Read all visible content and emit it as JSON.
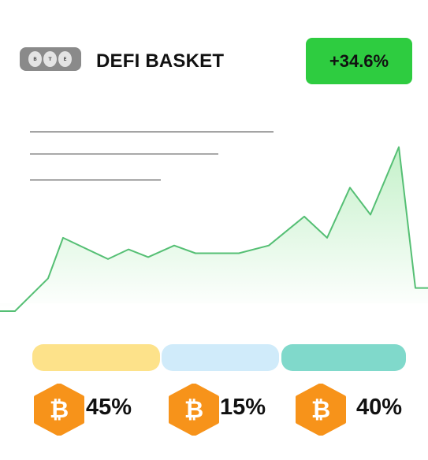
{
  "header": {
    "token_letters": [
      "B",
      "T",
      "E"
    ],
    "title": "DEFI BASKET",
    "change": "+34.6%"
  },
  "chart_data": {
    "type": "area",
    "series": [
      {
        "values": [
          0,
          0,
          17,
          38,
          27,
          32,
          28,
          34,
          30,
          30,
          34,
          49,
          38,
          64,
          50,
          85,
          12,
          12
        ]
      }
    ],
    "ylim": [
      0,
      100
    ],
    "grid": false,
    "line_color": "#55bf74",
    "fill_color": "#2ecc40"
  },
  "allocation": [
    {
      "asset": "bitcoin-icon",
      "percent_label": "45%",
      "share": 45,
      "color": "#fde28a"
    },
    {
      "asset": "bitcoin-icon",
      "percent_label": "15%",
      "share": 15,
      "color": "#d0ebfa"
    },
    {
      "asset": "bitcoin-icon",
      "percent_label": "40%",
      "share": 40,
      "color": "#80d9cb"
    }
  ],
  "colors": {
    "hex_orange": "#f7931a",
    "badge_green": "#2ecc40"
  }
}
